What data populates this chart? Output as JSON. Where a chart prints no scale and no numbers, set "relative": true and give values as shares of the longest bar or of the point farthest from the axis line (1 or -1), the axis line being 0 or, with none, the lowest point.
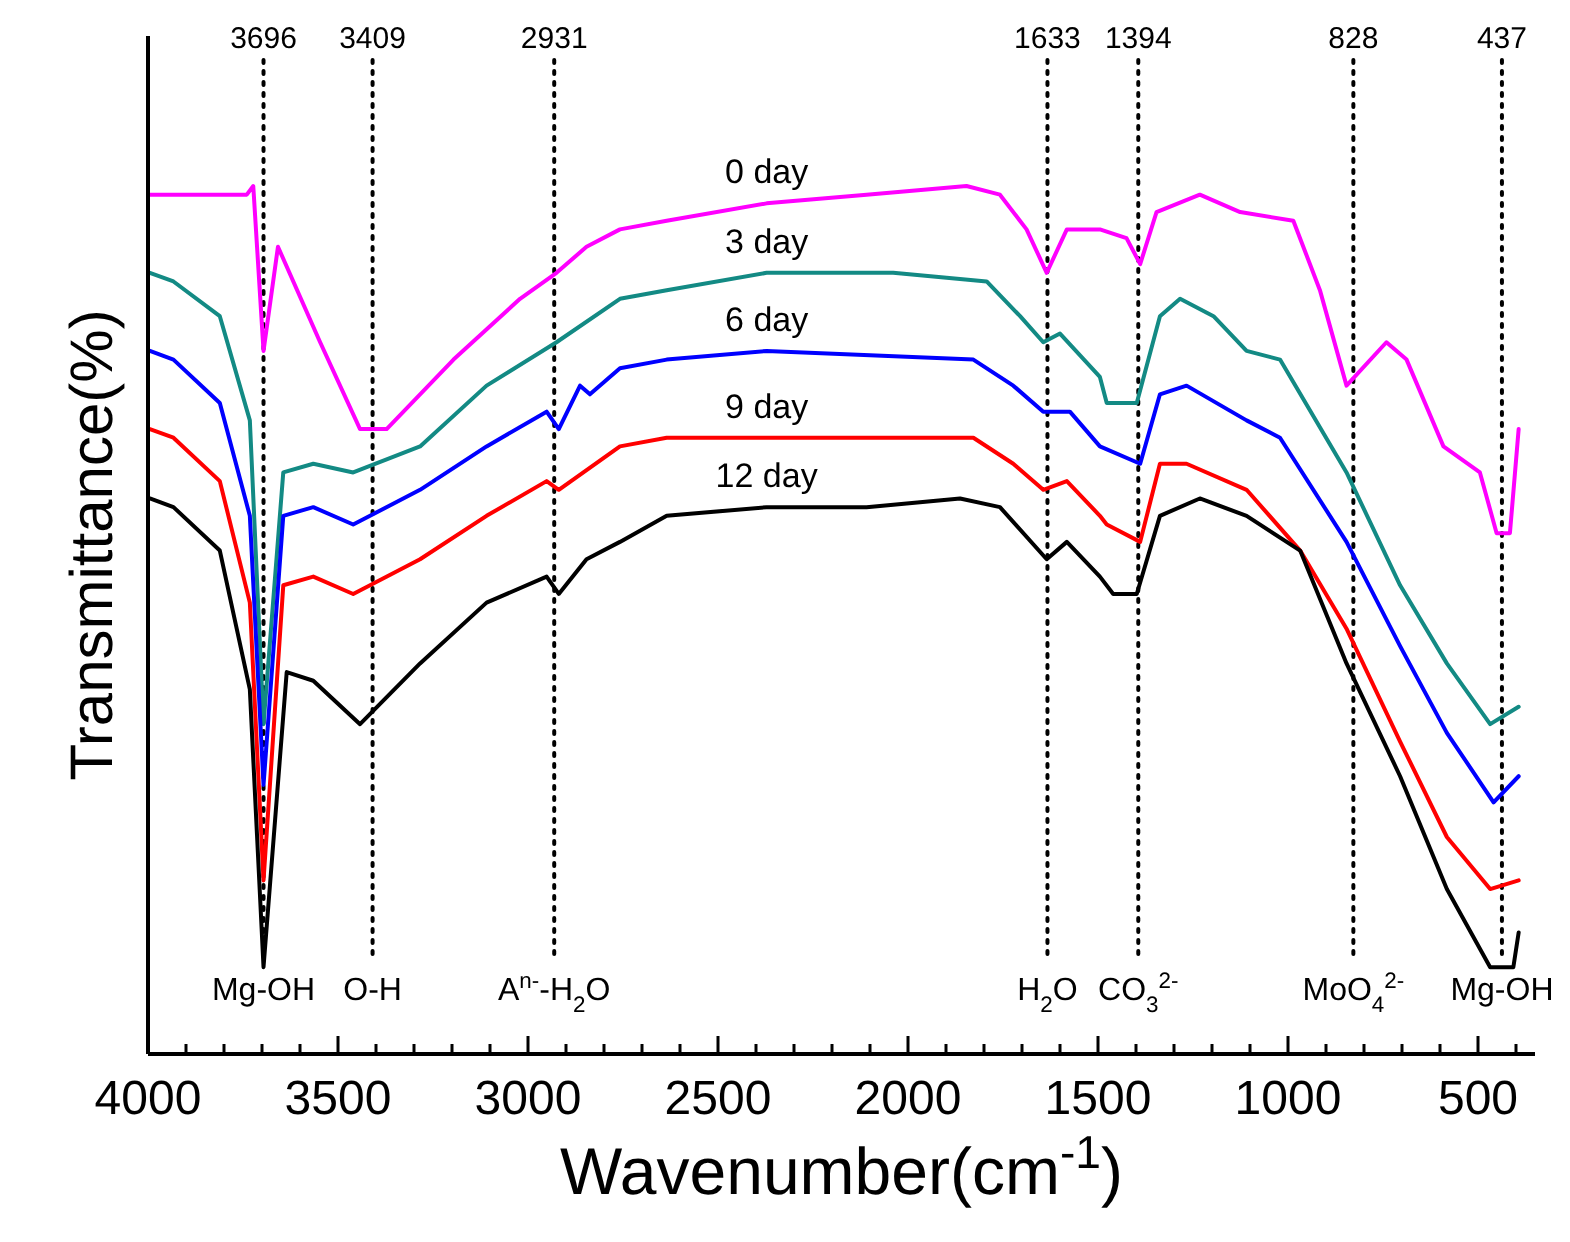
{
  "chart_data": {
    "type": "line",
    "relative": true,
    "xlabel": "Wavenumber(cm$^{-1}$)",
    "ylabel": "Transmittance(%)",
    "xlim": [
      4000,
      350
    ],
    "xticks": [
      4000,
      {
        "value": 3900,
        "label": null
      },
      {
        "value": 3800,
        "label": null
      },
      {
        "value": 3700,
        "label": null
      },
      {
        "value": 3600,
        "label": null
      },
      3500,
      {
        "value": 3400,
        "label": null
      },
      {
        "value": 3300,
        "label": null
      },
      {
        "value": 3200,
        "label": null
      },
      {
        "value": 3100,
        "label": null
      },
      3000,
      {
        "value": 2900,
        "label": null
      },
      {
        "value": 2800,
        "label": null
      },
      {
        "value": 2700,
        "label": null
      },
      {
        "value": 2600,
        "label": null
      },
      2500,
      {
        "value": 2400,
        "label": null
      },
      {
        "value": 2300,
        "label": null
      },
      {
        "value": 2200,
        "label": null
      },
      {
        "value": 2100,
        "label": null
      },
      2000,
      {
        "value": 1900,
        "label": null
      },
      {
        "value": 1800,
        "label": null
      },
      {
        "value": 1700,
        "label": null
      },
      {
        "value": 1600,
        "label": null
      },
      1500,
      {
        "value": 1400,
        "label": null
      },
      {
        "value": 1300,
        "label": null
      },
      {
        "value": 1200,
        "label": null
      },
      {
        "value": 1100,
        "label": null
      },
      1000,
      {
        "value": 900,
        "label": null
      },
      {
        "value": 800,
        "label": null
      },
      {
        "value": 700,
        "label": null
      },
      {
        "value": 600,
        "label": null
      },
      500,
      {
        "value": 400,
        "label": null
      }
    ],
    "grid": false,
    "line_style": "solid",
    "marker": "none",
    "series": [
      {
        "name": "0 day",
        "color": "#ff00ff",
        "x": [
          3995,
          3740,
          3723,
          3696,
          3658,
          3547,
          3442,
          3372,
          3196,
          3021,
          2925,
          2846,
          2758,
          2635,
          2372,
          2109,
          1846,
          1758,
          1688,
          1635,
          1582,
          1495,
          1425,
          1389,
          1346,
          1232,
          1126,
          986,
          916,
          846,
          741,
          688,
          591,
          495,
          451,
          416,
          393
        ],
        "values": [
          0.99,
          0.99,
          1.0,
          0.81,
          0.93,
          0.82,
          0.72,
          0.72,
          0.8,
          0.87,
          0.9,
          0.93,
          0.95,
          0.96,
          0.98,
          0.99,
          1.0,
          0.99,
          0.95,
          0.9,
          0.95,
          0.95,
          0.94,
          0.91,
          0.97,
          0.99,
          0.97,
          0.96,
          0.88,
          0.77,
          0.82,
          0.8,
          0.7,
          0.67,
          0.6,
          0.6,
          0.72
        ]
      },
      {
        "name": "3 day",
        "color": "#138a84",
        "x": [
          3995,
          3933,
          3811,
          3732,
          3696,
          3644,
          3565,
          3460,
          3284,
          3109,
          2925,
          2758,
          2635,
          2372,
          2039,
          1793,
          1705,
          1644,
          1600,
          1495,
          1477,
          1398,
          1337,
          1284,
          1196,
          1109,
          1021,
          846,
          705,
          582,
          468,
          393
        ],
        "values": [
          0.9,
          0.89,
          0.85,
          0.73,
          0.38,
          0.67,
          0.68,
          0.67,
          0.7,
          0.77,
          0.82,
          0.87,
          0.88,
          0.9,
          0.9,
          0.89,
          0.85,
          0.82,
          0.83,
          0.78,
          0.75,
          0.75,
          0.85,
          0.87,
          0.85,
          0.81,
          0.8,
          0.67,
          0.54,
          0.45,
          0.38,
          0.4
        ]
      },
      {
        "name": "6 day",
        "color": "#0000ff",
        "x": [
          3995,
          3933,
          3811,
          3732,
          3696,
          3644,
          3565,
          3460,
          3284,
          3109,
          2951,
          2919,
          2863,
          2837,
          2758,
          2635,
          2372,
          1828,
          1723,
          1644,
          1574,
          1495,
          1389,
          1337,
          1267,
          1109,
          1021,
          846,
          705,
          582,
          459,
          393
        ],
        "values": [
          0.81,
          0.8,
          0.75,
          0.62,
          0.31,
          0.62,
          0.63,
          0.61,
          0.65,
          0.7,
          0.74,
          0.72,
          0.77,
          0.76,
          0.79,
          0.8,
          0.81,
          0.8,
          0.77,
          0.74,
          0.74,
          0.7,
          0.68,
          0.76,
          0.77,
          0.73,
          0.71,
          0.59,
          0.47,
          0.37,
          0.29,
          0.32
        ]
      },
      {
        "name": "9 day",
        "color": "#ff0000",
        "x": [
          3995,
          3933,
          3811,
          3732,
          3696,
          3644,
          3565,
          3460,
          3284,
          3109,
          2951,
          2919,
          2758,
          2635,
          2372,
          1828,
          1723,
          1644,
          1582,
          1495,
          1477,
          1389,
          1337,
          1267,
          1109,
          968,
          846,
          705,
          582,
          468,
          393
        ],
        "values": [
          0.72,
          0.71,
          0.66,
          0.52,
          0.2,
          0.54,
          0.55,
          0.53,
          0.57,
          0.62,
          0.66,
          0.65,
          0.7,
          0.71,
          0.71,
          0.71,
          0.68,
          0.65,
          0.66,
          0.62,
          0.61,
          0.59,
          0.68,
          0.68,
          0.65,
          0.58,
          0.49,
          0.36,
          0.25,
          0.19,
          0.2
        ]
      },
      {
        "name": "12 day",
        "color": "#000000",
        "x": [
          3995,
          3933,
          3811,
          3732,
          3696,
          3635,
          3565,
          3442,
          3284,
          3109,
          2951,
          2919,
          2846,
          2758,
          2635,
          2372,
          2109,
          1863,
          1758,
          1635,
          1582,
          1495,
          1460,
          1398,
          1337,
          1232,
          1109,
          968,
          846,
          705,
          582,
          468,
          407,
          393
        ],
        "values": [
          0.64,
          0.63,
          0.58,
          0.42,
          0.1,
          0.44,
          0.43,
          0.38,
          0.45,
          0.52,
          0.55,
          0.53,
          0.57,
          0.59,
          0.62,
          0.63,
          0.63,
          0.64,
          0.63,
          0.57,
          0.59,
          0.55,
          0.53,
          0.53,
          0.62,
          0.64,
          0.62,
          0.58,
          0.45,
          0.32,
          0.19,
          0.1,
          0.1,
          0.14
        ]
      }
    ],
    "ref_lines": [
      {
        "axis": "x",
        "value": 3696,
        "label": "3696",
        "line_style": "dotted",
        "color": "#000000"
      },
      {
        "axis": "x",
        "value": 3409,
        "label": "3409",
        "line_style": "dotted",
        "color": "#000000"
      },
      {
        "axis": "x",
        "value": 2931,
        "label": "2931",
        "line_style": "dotted",
        "color": "#000000"
      },
      {
        "axis": "x",
        "value": 1633,
        "label": "1633",
        "line_style": "dotted",
        "color": "#000000"
      },
      {
        "axis": "x",
        "value": 1394,
        "label": "1394",
        "line_style": "dotted",
        "color": "#000000"
      },
      {
        "axis": "x",
        "value": 828,
        "label": "828",
        "line_style": "dotted",
        "color": "#000000"
      },
      {
        "axis": "x",
        "value": 437,
        "label": "437",
        "line_style": "dotted",
        "color": "#000000"
      }
    ],
    "annotations": [
      "Mg-OH",
      "O-H",
      "A$^{n-}$-H$_{2}$O",
      "H$_{2}$O",
      "CO$_{3}$$^{2-}$",
      "MoO$_{4}$$^{2-}$",
      "Mg-OH"
    ]
  }
}
